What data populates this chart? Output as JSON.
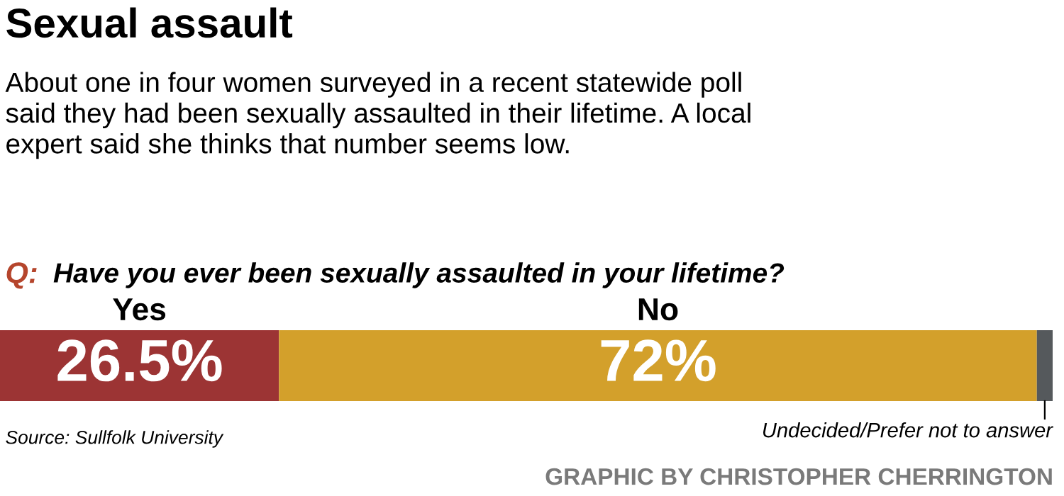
{
  "chart_data": {
    "type": "bar",
    "orientation": "horizontal",
    "stacked": true,
    "title": "Sexual assault",
    "subtitle": "About one in four women surveyed in a recent statewide poll\nsaid they had been sexually assaulted in their lifetime. A local\nexpert said she thinks that number seems low.",
    "categories": [
      null
    ],
    "series": [
      {
        "name": "Yes",
        "color": "#9c3434",
        "values": [
          26.5
        ],
        "value_labels": [
          "26.5%"
        ]
      },
      {
        "name": "No",
        "color": "#d3a02b",
        "values": [
          72
        ],
        "value_labels": [
          "72%"
        ]
      },
      {
        "name": "Undecided/Prefer not to answer",
        "color": "#55595c",
        "values": [
          1.5
        ],
        "value_labels": [
          null
        ]
      }
    ],
    "annotations": [
      "Q:",
      "Have you ever been sexually assaulted in your lifetime?",
      "Source: Sullfolk University",
      "GRAPHIC BY CHRISTOPHER CHERRINGTON"
    ],
    "legend": false
  }
}
